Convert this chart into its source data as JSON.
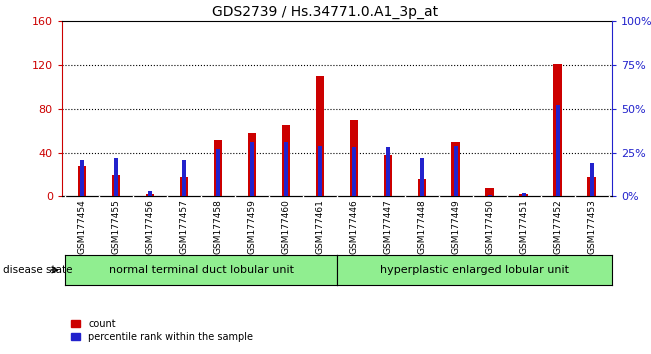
{
  "title": "GDS2739 / Hs.34771.0.A1_3p_at",
  "samples": [
    "GSM177454",
    "GSM177455",
    "GSM177456",
    "GSM177457",
    "GSM177458",
    "GSM177459",
    "GSM177460",
    "GSM177461",
    "GSM177446",
    "GSM177447",
    "GSM177448",
    "GSM177449",
    "GSM177450",
    "GSM177451",
    "GSM177452",
    "GSM177453"
  ],
  "counts": [
    28,
    20,
    2,
    18,
    52,
    58,
    65,
    110,
    70,
    38,
    16,
    50,
    8,
    2,
    121,
    18
  ],
  "percentiles": [
    21,
    22,
    3,
    21,
    27,
    31,
    31,
    29,
    28,
    28,
    22,
    29,
    1,
    2,
    52,
    19
  ],
  "group1_label": "normal terminal duct lobular unit",
  "group1_count": 8,
  "group2_label": "hyperplastic enlarged lobular unit",
  "group2_count": 8,
  "disease_state_label": "disease state",
  "legend_count": "count",
  "legend_percentile": "percentile rank within the sample",
  "ylim_left": [
    0,
    160
  ],
  "ylim_right": [
    0,
    100
  ],
  "yticks_left": [
    0,
    40,
    80,
    120,
    160
  ],
  "yticks_right": [
    0,
    25,
    50,
    75,
    100
  ],
  "ytick_labels_left": [
    "0",
    "40",
    "80",
    "120",
    "160"
  ],
  "ytick_labels_right": [
    "0%",
    "25%",
    "50%",
    "75%",
    "100%"
  ],
  "bar_color_count": "#cc0000",
  "bar_color_percentile": "#2222cc",
  "group1_color": "#90ee90",
  "group2_color": "#90ee90",
  "tick_color_left": "#cc0000",
  "tick_color_right": "#2222cc",
  "red_bar_width": 0.25,
  "blue_bar_width": 0.12
}
